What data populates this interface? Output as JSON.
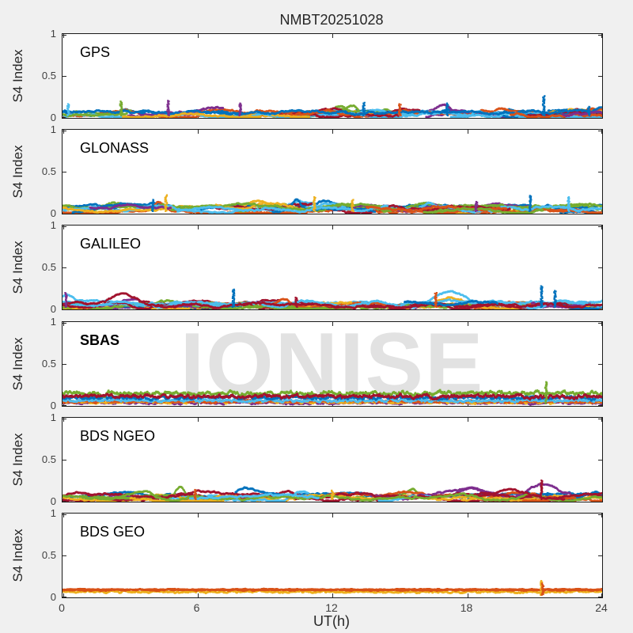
{
  "figure": {
    "background": "#f0f0f0",
    "panel_background": "#ffffff",
    "axis_color": "#1a1a1a",
    "tick_color": "#262626",
    "tick_label_color": "#404040",
    "watermark_color": "#e2e2e2"
  },
  "chart_data": {
    "type": "scatter",
    "title": "NMBT20251028",
    "xlabel": "UT(h)",
    "ylabel": "S4 Index",
    "xlim": [
      0,
      24
    ],
    "ylim": [
      0,
      1
    ],
    "xticks": [
      0,
      6,
      12,
      18,
      24
    ],
    "yticks": [
      0,
      0.5,
      1
    ],
    "xtick_labels": [
      "0",
      "6",
      "12",
      "18",
      "24"
    ],
    "ytick_labels": [
      "0",
      "0.5",
      "1"
    ],
    "watermark": "IONISE",
    "grid": false,
    "legend": "none",
    "palette": [
      "#0072BD",
      "#D95319",
      "#EDB120",
      "#7E2F8E",
      "#77AC30",
      "#4DBEEE",
      "#A2142F"
    ],
    "panels": [
      {
        "label": "GPS",
        "bold": false,
        "mode": "patchy",
        "seed": 101,
        "tracks": 32,
        "base_range": [
          0.02,
          0.08
        ],
        "spikes": [
          {
            "x": 0.25,
            "y": 0.17,
            "color": 5
          },
          {
            "x": 2.6,
            "y": 0.2,
            "color": 4
          },
          {
            "x": 4.7,
            "y": 0.21,
            "color": 3
          },
          {
            "x": 7.9,
            "y": 0.18,
            "color": 3
          },
          {
            "x": 13.4,
            "y": 0.19,
            "color": 0
          },
          {
            "x": 15.0,
            "y": 0.17,
            "color": 1
          },
          {
            "x": 17.1,
            "y": 0.18,
            "color": 0
          },
          {
            "x": 21.4,
            "y": 0.27,
            "color": 0
          },
          {
            "x": 23.4,
            "y": 0.14,
            "color": 0
          }
        ]
      },
      {
        "label": "GLONASS",
        "bold": false,
        "mode": "patchy",
        "seed": 202,
        "tracks": 26,
        "base_range": [
          0.02,
          0.09
        ],
        "spikes": [
          {
            "x": 4.0,
            "y": 0.17,
            "color": 0
          },
          {
            "x": 4.6,
            "y": 0.23,
            "color": 2
          },
          {
            "x": 11.2,
            "y": 0.2,
            "color": 2
          },
          {
            "x": 12.9,
            "y": 0.17,
            "color": 2
          },
          {
            "x": 18.4,
            "y": 0.15,
            "color": 3
          },
          {
            "x": 20.8,
            "y": 0.22,
            "color": 0
          },
          {
            "x": 22.5,
            "y": 0.2,
            "color": 5
          }
        ]
      },
      {
        "label": "GALILEO",
        "bold": false,
        "mode": "patchy",
        "seed": 303,
        "tracks": 22,
        "base_range": [
          0.02,
          0.09
        ],
        "spikes": [
          {
            "x": 0.15,
            "y": 0.2,
            "color": 3
          },
          {
            "x": 7.6,
            "y": 0.24,
            "color": 0
          },
          {
            "x": 10.4,
            "y": 0.15,
            "color": 6
          },
          {
            "x": 16.6,
            "y": 0.2,
            "color": 1
          },
          {
            "x": 21.3,
            "y": 0.28,
            "color": 0
          },
          {
            "x": 21.9,
            "y": 0.23,
            "color": 0
          }
        ]
      },
      {
        "label": "SBAS",
        "bold": true,
        "mode": "continuous",
        "seed": 404,
        "series": [
          {
            "color": 3,
            "level": 0.035,
            "jitter": 0.01
          },
          {
            "color": 2,
            "level": 0.045,
            "jitter": 0.012
          },
          {
            "color": 1,
            "level": 0.055,
            "jitter": 0.012
          },
          {
            "color": 5,
            "level": 0.065,
            "jitter": 0.014
          },
          {
            "color": 0,
            "level": 0.1,
            "jitter": 0.016
          },
          {
            "color": 4,
            "level": 0.15,
            "jitter": 0.02
          },
          {
            "color": 6,
            "level": 0.115,
            "jitter": 0.018
          }
        ],
        "spikes": [
          {
            "x": 21.5,
            "y": 0.29,
            "color": 4
          }
        ]
      },
      {
        "label": "BDS NGEO",
        "bold": false,
        "mode": "patchy",
        "seed": 505,
        "tracks": 28,
        "base_range": [
          0.02,
          0.08
        ],
        "spikes": [
          {
            "x": 5.9,
            "y": 0.15,
            "color": 1
          },
          {
            "x": 12.0,
            "y": 0.14,
            "color": 2
          },
          {
            "x": 21.3,
            "y": 0.26,
            "color": 6
          }
        ]
      },
      {
        "label": "BDS GEO",
        "bold": false,
        "mode": "continuous",
        "seed": 606,
        "series": [
          {
            "color": 2,
            "level": 0.068,
            "jitter": 0.01
          },
          {
            "color": 1,
            "level": 0.088,
            "jitter": 0.006
          },
          {
            "color": 1,
            "level": 0.096,
            "jitter": 0.005
          }
        ],
        "spikes": [
          {
            "x": 21.3,
            "y": 0.2,
            "color": 2
          },
          {
            "x": 21.35,
            "y": 0.17,
            "color": 1
          }
        ]
      }
    ]
  }
}
